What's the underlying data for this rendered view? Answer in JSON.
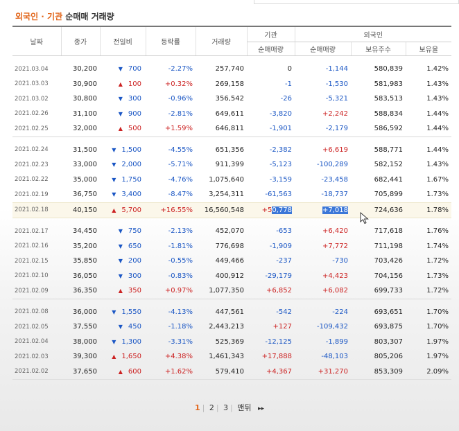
{
  "title": {
    "part1": "외국인 · 기관",
    "part2": " 순매매 거래량"
  },
  "headers": {
    "date": "날짜",
    "close": "종가",
    "change": "전일비",
    "rate": "등락률",
    "volume": "거래량",
    "inst": "기관",
    "foreign": "외국인",
    "inst_net": "순매매량",
    "foreign_net": "순매매량",
    "holding": "보유주수",
    "ratio": "보유율"
  },
  "groups": [
    [
      {
        "date": "2021.03.04",
        "close": "30,200",
        "dir": "down",
        "change": "700",
        "rate": "-2.27%",
        "volume": "257,740",
        "inst": "0",
        "foreign": "-1,144",
        "holding": "580,839",
        "ratio": "1.42%"
      },
      {
        "date": "2021.03.03",
        "close": "30,900",
        "dir": "up",
        "change": "100",
        "rate": "+0.32%",
        "volume": "269,158",
        "inst": "-1",
        "foreign": "-1,530",
        "holding": "581,983",
        "ratio": "1.43%"
      },
      {
        "date": "2021.03.02",
        "close": "30,800",
        "dir": "down",
        "change": "300",
        "rate": "-0.96%",
        "volume": "356,542",
        "inst": "-26",
        "foreign": "-5,321",
        "holding": "583,513",
        "ratio": "1.43%"
      },
      {
        "date": "2021.02.26",
        "close": "31,100",
        "dir": "down",
        "change": "900",
        "rate": "-2.81%",
        "volume": "649,611",
        "inst": "-3,820",
        "foreign": "+2,242",
        "holding": "588,834",
        "ratio": "1.44%"
      },
      {
        "date": "2021.02.25",
        "close": "32,000",
        "dir": "up",
        "change": "500",
        "rate": "+1.59%",
        "volume": "646,811",
        "inst": "-1,901",
        "foreign": "-2,179",
        "holding": "586,592",
        "ratio": "1.44%"
      }
    ],
    [
      {
        "date": "2021.02.24",
        "close": "31,500",
        "dir": "down",
        "change": "1,500",
        "rate": "-4.55%",
        "volume": "651,356",
        "inst": "-2,382",
        "foreign": "+6,619",
        "holding": "588,771",
        "ratio": "1.44%"
      },
      {
        "date": "2021.02.23",
        "close": "33,000",
        "dir": "down",
        "change": "2,000",
        "rate": "-5.71%",
        "volume": "911,399",
        "inst": "-5,123",
        "foreign": "-100,289",
        "holding": "582,152",
        "ratio": "1.43%"
      },
      {
        "date": "2021.02.22",
        "close": "35,000",
        "dir": "down",
        "change": "1,750",
        "rate": "-4.76%",
        "volume": "1,075,640",
        "inst": "-3,159",
        "foreign": "-23,458",
        "holding": "682,441",
        "ratio": "1.67%"
      },
      {
        "date": "2021.02.19",
        "close": "36,750",
        "dir": "down",
        "change": "3,400",
        "rate": "-8.47%",
        "volume": "3,254,311",
        "inst": "-61,563",
        "foreign": "-18,737",
        "holding": "705,899",
        "ratio": "1.73%"
      },
      {
        "date": "2021.02.18",
        "close": "40,150",
        "dir": "up",
        "change": "5,700",
        "rate": "+16.55%",
        "volume": "16,560,548",
        "inst_a": "+5",
        "inst_b": "0,778",
        "foreign": "+7,018",
        "holding": "724,636",
        "ratio": "1.78%",
        "highlight": true
      }
    ],
    [
      {
        "date": "2021.02.17",
        "close": "34,450",
        "dir": "down",
        "change": "750",
        "rate": "-2.13%",
        "volume": "452,070",
        "inst": "-653",
        "foreign": "+6,420",
        "holding": "717,618",
        "ratio": "1.76%"
      },
      {
        "date": "2021.02.16",
        "close": "35,200",
        "dir": "down",
        "change": "650",
        "rate": "-1.81%",
        "volume": "776,698",
        "inst": "-1,909",
        "foreign": "+7,772",
        "holding": "711,198",
        "ratio": "1.74%"
      },
      {
        "date": "2021.02.15",
        "close": "35,850",
        "dir": "down",
        "change": "200",
        "rate": "-0.55%",
        "volume": "449,466",
        "inst": "-237",
        "foreign": "-730",
        "holding": "703,426",
        "ratio": "1.72%"
      },
      {
        "date": "2021.02.10",
        "close": "36,050",
        "dir": "down",
        "change": "300",
        "rate": "-0.83%",
        "volume": "400,912",
        "inst": "-29,179",
        "foreign": "+4,423",
        "holding": "704,156",
        "ratio": "1.73%"
      },
      {
        "date": "2021.02.09",
        "close": "36,350",
        "dir": "up",
        "change": "350",
        "rate": "+0.97%",
        "volume": "1,077,350",
        "inst": "+6,852",
        "foreign": "+6,082",
        "holding": "699,733",
        "ratio": "1.72%"
      }
    ],
    [
      {
        "date": "2021.02.08",
        "close": "36,000",
        "dir": "down",
        "change": "1,550",
        "rate": "-4.13%",
        "volume": "447,561",
        "inst": "-542",
        "foreign": "-224",
        "holding": "693,651",
        "ratio": "1.70%"
      },
      {
        "date": "2021.02.05",
        "close": "37,550",
        "dir": "down",
        "change": "450",
        "rate": "-1.18%",
        "volume": "2,443,213",
        "inst": "+127",
        "foreign": "-109,432",
        "holding": "693,875",
        "ratio": "1.70%"
      },
      {
        "date": "2021.02.04",
        "close": "38,000",
        "dir": "down",
        "change": "1,300",
        "rate": "-3.31%",
        "volume": "525,369",
        "inst": "-12,125",
        "foreign": "-1,899",
        "holding": "803,307",
        "ratio": "1.97%"
      },
      {
        "date": "2021.02.03",
        "close": "39,300",
        "dir": "up",
        "change": "1,650",
        "rate": "+4.38%",
        "volume": "1,461,343",
        "inst": "+17,888",
        "foreign": "-48,103",
        "holding": "805,206",
        "ratio": "1.97%"
      },
      {
        "date": "2021.02.02",
        "close": "37,650",
        "dir": "up",
        "change": "600",
        "rate": "+1.62%",
        "volume": "579,410",
        "inst": "+4,367",
        "foreign": "+31,270",
        "holding": "853,309",
        "ratio": "2.09%"
      }
    ]
  ],
  "pager": {
    "p1": "1",
    "p2": "2",
    "p3": "3",
    "last": "맨뒤",
    "next_icon": "▸▸"
  },
  "icons": {
    "up": "▲",
    "down": "▼"
  },
  "colors": {
    "up": "#cc2222",
    "down": "#1a56c4",
    "accent": "#e2661b",
    "selection": "#3b77d8"
  }
}
